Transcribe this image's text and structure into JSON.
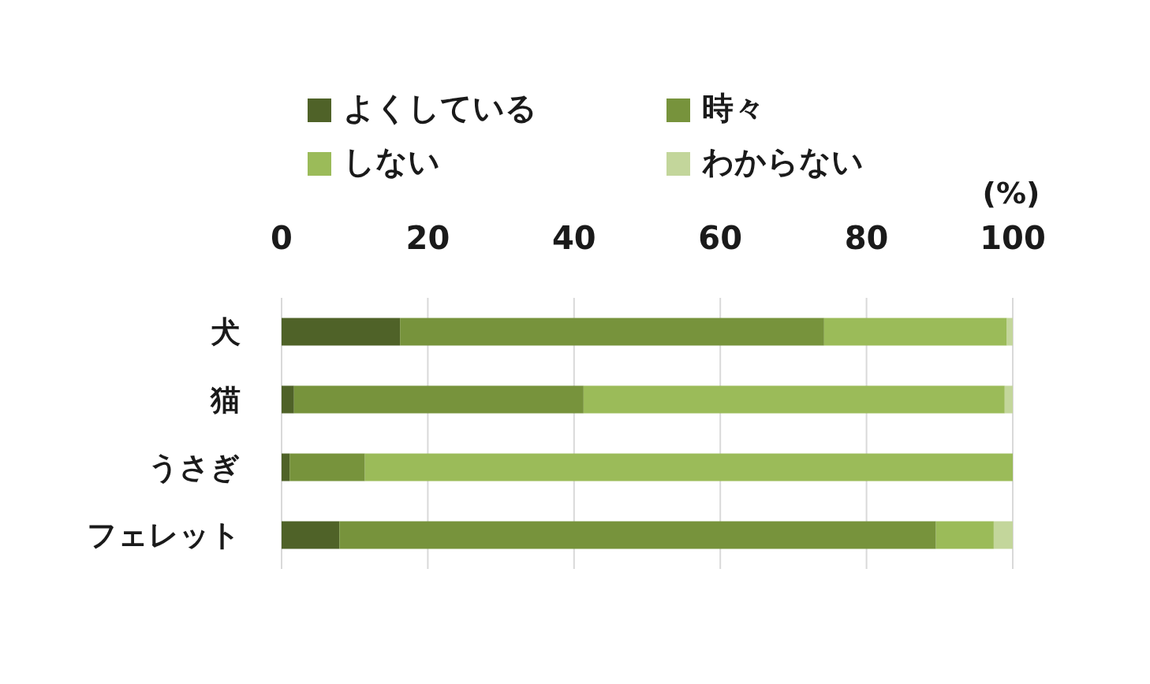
{
  "chart_data": {
    "type": "bar",
    "orientation": "horizontal",
    "stacked": true,
    "grid": "x",
    "legend": "top",
    "xlabel": "(%)",
    "xlim": [
      0,
      100
    ],
    "xticks": [
      0,
      20,
      40,
      60,
      80,
      100
    ],
    "categories": [
      "犬",
      "猫",
      "うさぎ",
      "フェレット"
    ],
    "series": [
      {
        "name": "よくしている",
        "color": "#4f6228",
        "values": [
          16.2,
          1.7,
          1.1,
          7.9
        ]
      },
      {
        "name": "時々",
        "color": "#77933c",
        "values": [
          58.0,
          39.6,
          10.3,
          81.6
        ]
      },
      {
        "name": "しない",
        "color": "#9bbb59",
        "values": [
          25.0,
          57.6,
          88.6,
          7.9
        ]
      },
      {
        "name": "わからない",
        "color": "#c3d69b",
        "values": [
          0.8,
          1.1,
          0,
          2.6
        ]
      }
    ]
  }
}
